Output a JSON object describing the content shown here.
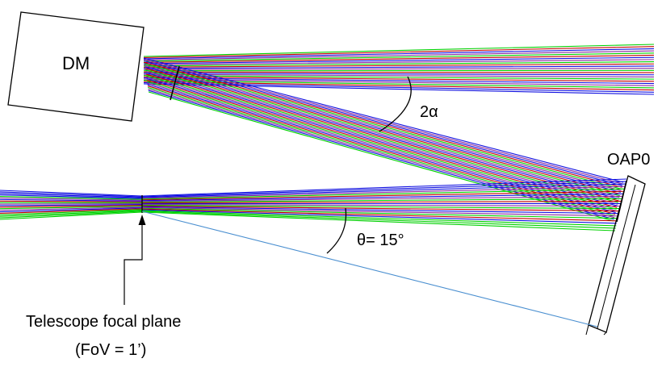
{
  "labels": {
    "dm": "DM",
    "oap": "OAP0",
    "two_alpha": "2α",
    "theta": "θ= 15°",
    "focal_plane": "Telescope focal plane",
    "fov": "(FoV = 1’)"
  },
  "colors": {
    "ray_green": "#00d000",
    "ray_red": "#c00000",
    "ray_blue": "#1010e0",
    "ray_purple": "#8a2aa0",
    "guide_line": "#4a8fd0",
    "outline": "#000000"
  }
}
